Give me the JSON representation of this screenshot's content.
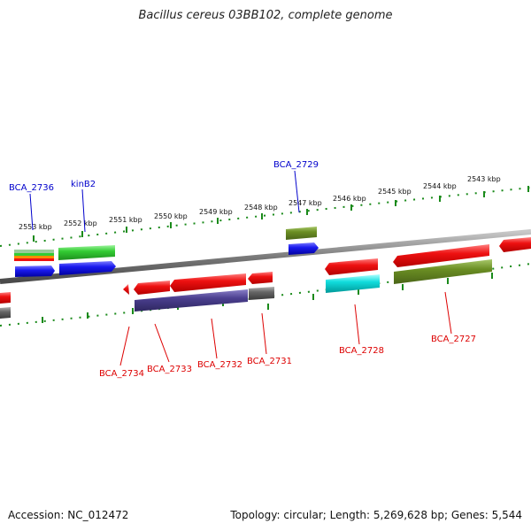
{
  "title": "Bacillus cereus 03BB102, complete genome",
  "footer": {
    "accession": "Accession: NC_012472",
    "topology": "Topology: circular; Length: 5,269,628 bp; Genes: 5,544"
  },
  "ticks": [
    "2553 kbp",
    "2552 kbp",
    "2551 kbp",
    "2550 kbp",
    "2549 kbp",
    "2548 kbp",
    "2547 kbp",
    "2546 kbp",
    "2545 kbp",
    "2544 kbp",
    "2543 kbp"
  ],
  "genes": {
    "forward": [
      "BCA_2736",
      "kinB2",
      "BCA_2729"
    ],
    "reverse": [
      "BCA_2734",
      "BCA_2733",
      "BCA_2732",
      "BCA_2731",
      "BCA_2728",
      "BCA_2727"
    ]
  },
  "colors": {
    "forward_label": "#0000cc",
    "reverse_label": "#dd0000",
    "cds_red": "#ee1111",
    "cds_blue": "#1a1aee",
    "cds_green": "#33cc33",
    "cds_olive": "#6b8e23",
    "cds_cyan": "#11dddd",
    "cds_purple": "#4b3f8f",
    "cds_gray": "#666666",
    "tick_green": "#1a8a1a",
    "backbone": "#7a7a7a"
  }
}
